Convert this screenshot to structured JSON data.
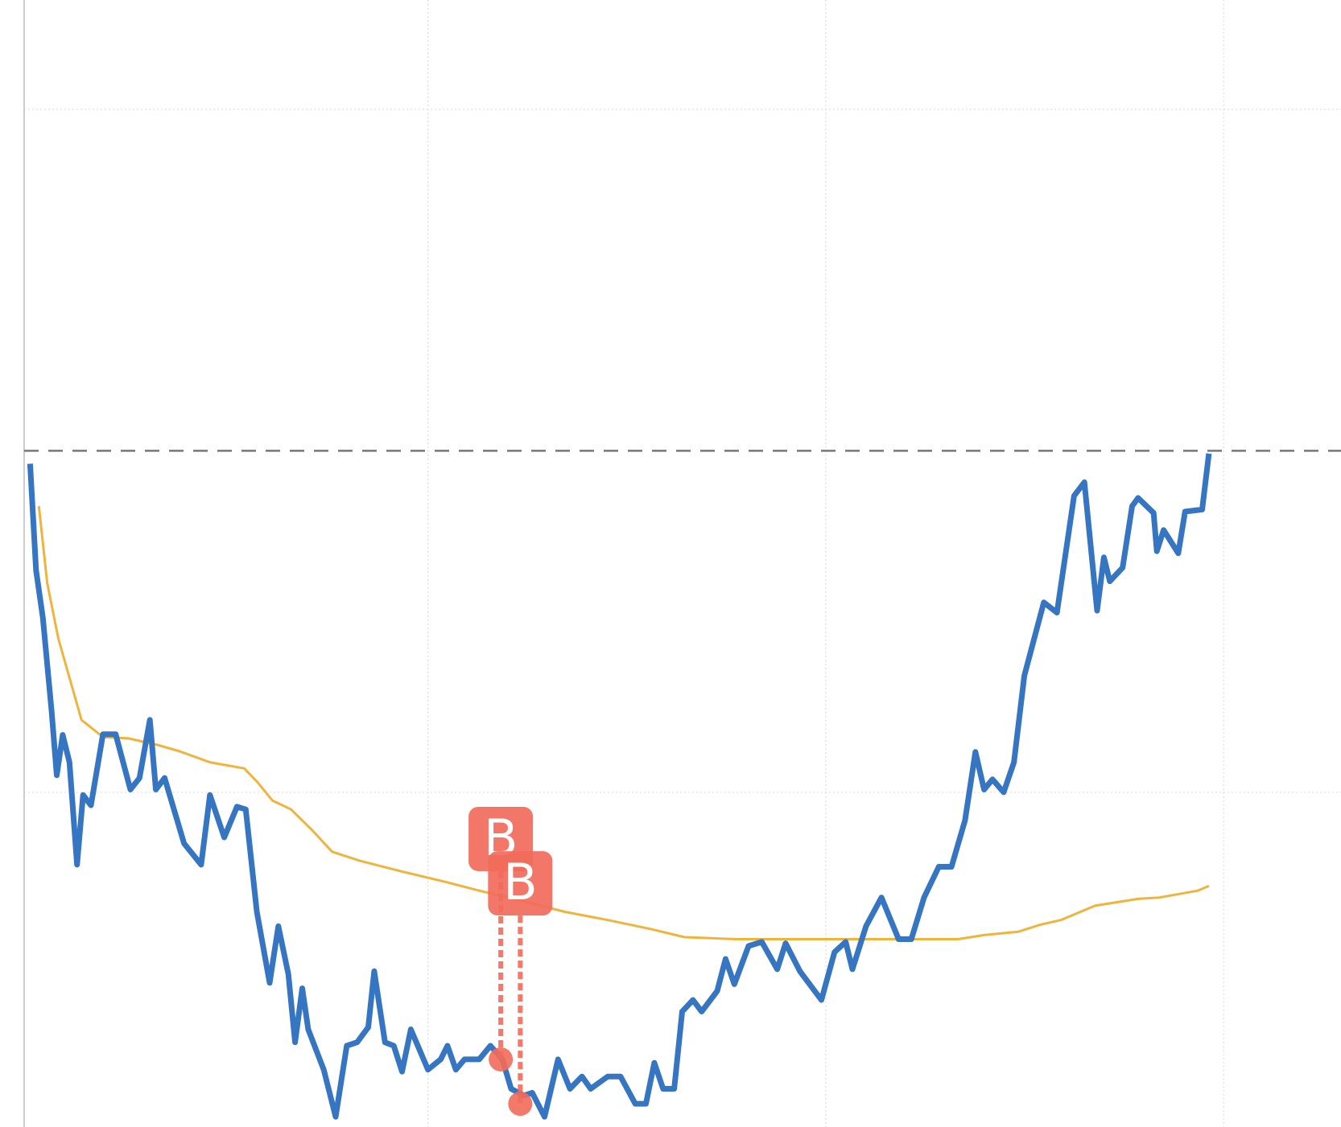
{
  "chart_data": {
    "type": "line",
    "xlim": [
      -1.5,
      329.5
    ],
    "xticks": [
      100,
      200,
      300
    ],
    "ylim": [
      1,
      166
    ],
    "yticks": [
      50,
      150
    ],
    "grid": true,
    "reference_line": 100,
    "series": [
      {
        "color": "#3575c2",
        "x": [
          0,
          1.5,
          3.2,
          5.4,
          6.7,
          8.2,
          9.9,
          11.8,
          13.3,
          15.3,
          18.3,
          21.5,
          25.2,
          27.5,
          30.1,
          31.6,
          33.8,
          38.7,
          43,
          45.2,
          48.8,
          52,
          54.2,
          57,
          60.2,
          62.4,
          64.9,
          66.6,
          68.4,
          69.9,
          73.8,
          76.8,
          79.6,
          82.2,
          85,
          86.5,
          89.2,
          91.4,
          93.5,
          95.7,
          100,
          103.2,
          104.9,
          107,
          109.2,
          112.9,
          115.7,
          118.7,
          120.9,
          124.1,
          126.2,
          129.3,
          132.7,
          135.7,
          138.7,
          140.9,
          145.2,
          148.4,
          152.1,
          154.8,
          156.9,
          159.1,
          161.9,
          163.9,
          166.6,
          168.8,
          172.7,
          174.8,
          177,
          180.6,
          183.9,
          187.8,
          189.9,
          193.5,
          198.9,
          202.2,
          205,
          206.7,
          210.1,
          214,
          218.3,
          221.5,
          224.7,
          228.4,
          231.6,
          235,
          237.6,
          239.8,
          241.9,
          244.7,
          247.3,
          249.9,
          254.8,
          258.1,
          262.4,
          265,
          268.2,
          269.9,
          271.4,
          274.6,
          277,
          278.5,
          282.4,
          283.2,
          284.9,
          288.6,
          290.3,
          294.6,
          296.3
        ],
        "values": [
          98.1,
          82.5,
          75.6,
          61.9,
          52.5,
          58.4,
          54.4,
          39.4,
          49.6,
          48.1,
          58.5,
          58.5,
          50.4,
          52.1,
          60.6,
          50.4,
          52.1,
          42.5,
          39.4,
          49.6,
          43.4,
          47.9,
          47.5,
          32.5,
          22.1,
          30.4,
          23.4,
          13.4,
          21.3,
          15.3,
          9.4,
          2.5,
          12.9,
          13.4,
          15.6,
          23.8,
          13.4,
          12.9,
          9.1,
          15.3,
          9.4,
          10.9,
          12.9,
          9.4,
          10.9,
          10.9,
          12.9,
          10.9,
          6.6,
          5.6,
          6,
          2.5,
          10.9,
          6.6,
          8.4,
          6.6,
          8.4,
          8.4,
          4.4,
          4.4,
          10.4,
          6.6,
          6.6,
          17.9,
          19.6,
          17.9,
          20.9,
          25.6,
          21.9,
          27.5,
          28.1,
          24.1,
          27.9,
          23.8,
          19.6,
          26.6,
          28.1,
          24.1,
          30.4,
          34.6,
          28.5,
          28.5,
          34.6,
          39.1,
          39.1,
          45.9,
          55.9,
          50.4,
          51.9,
          50,
          54.4,
          67.1,
          77.8,
          76.3,
          93.4,
          95.4,
          76.6,
          84.4,
          80.9,
          82.9,
          91.9,
          93.1,
          90.9,
          85.3,
          88.4,
          85,
          91.1,
          91.4,
          99.6
        ]
      },
      {
        "color": "#f0b43c",
        "x": [
          2.2,
          4.3,
          7.1,
          12.9,
          18.3,
          24.7,
          32.3,
          37.6,
          45.2,
          53.8,
          57,
          60.9,
          65.6,
          71,
          75.9,
          82.8,
          93.5,
          104.3,
          112.9,
          123.7,
          134.4,
          145.2,
          155.9,
          164.5,
          177.4,
          207.5,
          233.3,
          239.8,
          248.4,
          253.8,
          259.1,
          267.7,
          278.5,
          283.9,
          293.5,
          296.3
        ],
        "values": [
          91.9,
          80.6,
          72.5,
          60.6,
          58.1,
          57.9,
          56.9,
          56,
          54.4,
          53.5,
          51.6,
          48.8,
          47.5,
          44.4,
          41.3,
          40,
          38.4,
          36.9,
          35.6,
          34.1,
          32.5,
          31.3,
          30,
          28.8,
          28.5,
          28.5,
          28.5,
          29.1,
          29.6,
          30.6,
          31.3,
          33.4,
          34.4,
          34.6,
          35.6,
          36.3
        ]
      }
    ],
    "markers": [
      {
        "label": "B",
        "x": 118.3,
        "y": 10.9,
        "color": "#f26b5b"
      },
      {
        "label": "B",
        "x": 123.2,
        "y": 4.4,
        "color": "#f26b5b"
      }
    ]
  }
}
